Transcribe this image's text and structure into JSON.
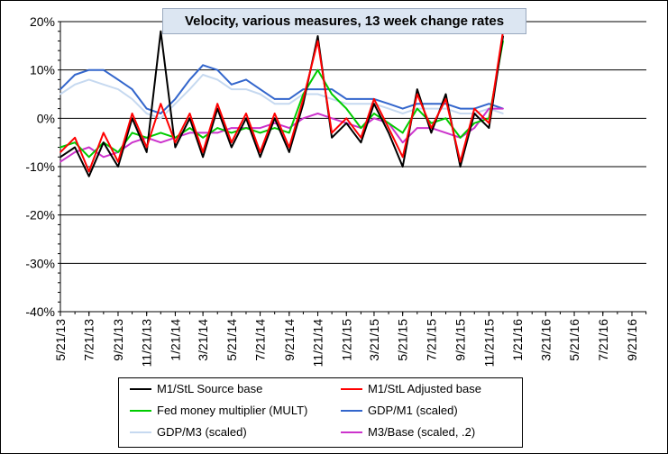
{
  "chart_data": {
    "type": "line",
    "title": "Velocity, various measures, 13 week change rates",
    "ylim": [
      -40,
      20
    ],
    "yticks": [
      "20%",
      "10%",
      "0%",
      "-10%",
      "-20%",
      "-30%",
      "-40%"
    ],
    "ytick_values": [
      20,
      10,
      0,
      -10,
      -20,
      -30,
      -40
    ],
    "xtick_labels": [
      "5/21/13",
      "7/21/13",
      "9/21/13",
      "11/21/13",
      "1/21/14",
      "3/21/14",
      "5/21/14",
      "7/21/14",
      "9/21/14",
      "11/21/14",
      "1/21/15",
      "3/21/15",
      "5/21/15",
      "7/21/15",
      "9/21/15",
      "11/21/15",
      "1/21/16",
      "3/21/16",
      "5/21/16",
      "7/21/16",
      "9/21/16"
    ],
    "grid": "horizontal",
    "legend_position": "bottom",
    "series": [
      {
        "name": "M1/StL Source base",
        "color": "#000000",
        "x": [
          "5/21/13",
          "6/21/13",
          "7/21/13",
          "8/21/13",
          "9/21/13",
          "10/21/13",
          "11/21/13",
          "12/21/13",
          "1/21/14",
          "2/21/14",
          "3/21/14",
          "4/21/14",
          "5/21/14",
          "6/21/14",
          "7/21/14",
          "8/21/14",
          "9/21/14",
          "10/21/14",
          "11/21/14",
          "12/21/14",
          "1/21/15",
          "2/21/15",
          "3/21/15",
          "4/21/15",
          "5/21/15",
          "6/21/15",
          "7/21/15",
          "8/21/15",
          "9/21/15",
          "10/21/15",
          "11/21/15",
          "12/21/15"
        ],
        "values": [
          -8,
          -6,
          -12,
          -5,
          -10,
          0,
          -7,
          18,
          -6,
          0,
          -8,
          2,
          -6,
          0,
          -8,
          0,
          -7,
          3,
          17,
          -4,
          -1,
          -5,
          3,
          -3,
          -10,
          6,
          -3,
          5,
          -10,
          1,
          -2,
          17
        ]
      },
      {
        "name": "M1/StL Adjusted base",
        "color": "#ff0000",
        "x": [
          "5/21/13",
          "6/21/13",
          "7/21/13",
          "8/21/13",
          "9/21/13",
          "10/21/13",
          "11/21/13",
          "12/21/13",
          "1/21/14",
          "2/21/14",
          "3/21/14",
          "4/21/14",
          "5/21/14",
          "6/21/14",
          "7/21/14",
          "8/21/14",
          "9/21/14",
          "10/21/14",
          "11/21/14",
          "12/21/14",
          "1/21/15",
          "2/21/15",
          "3/21/15",
          "4/21/15",
          "5/21/15",
          "6/21/15",
          "7/21/15",
          "8/21/15",
          "9/21/15",
          "10/21/15",
          "11/21/15",
          "12/21/15"
        ],
        "values": [
          -7,
          -4,
          -11,
          -3,
          -9,
          1,
          -6,
          3,
          -5,
          1,
          -7,
          3,
          -5,
          1,
          -7,
          1,
          -6,
          4,
          16,
          -3,
          0,
          -4,
          4,
          -2,
          -8,
          5,
          -2,
          4,
          -9,
          2,
          -1,
          18
        ]
      },
      {
        "name": "Fed money multiplier (MULT)",
        "color": "#00cc00",
        "x": [
          "5/21/13",
          "6/21/13",
          "7/21/13",
          "8/21/13",
          "9/21/13",
          "10/21/13",
          "11/21/13",
          "12/21/13",
          "1/21/14",
          "2/21/14",
          "3/21/14",
          "4/21/14",
          "5/21/14",
          "6/21/14",
          "7/21/14",
          "8/21/14",
          "9/21/14",
          "10/21/14",
          "11/21/14",
          "12/21/14",
          "1/21/15",
          "2/21/15",
          "3/21/15",
          "4/21/15",
          "5/21/15",
          "6/21/15",
          "7/21/15",
          "8/21/15",
          "9/21/15",
          "10/21/15",
          "11/21/15",
          "12/21/15"
        ],
        "values": [
          -6,
          -5,
          -8,
          -5,
          -7,
          -3,
          -4,
          -3,
          -4,
          -2,
          -4,
          -2,
          -3,
          -2,
          -3,
          -2,
          -3,
          5,
          10,
          5,
          2,
          -2,
          1,
          -1,
          -3,
          2,
          -1,
          0,
          -4,
          -1,
          0,
          16
        ]
      },
      {
        "name": "GDP/M1 (scaled)",
        "color": "#3366cc",
        "x": [
          "5/21/13",
          "6/21/13",
          "7/21/13",
          "8/21/13",
          "9/21/13",
          "10/21/13",
          "11/21/13",
          "12/21/13",
          "1/21/14",
          "2/21/14",
          "3/21/14",
          "4/21/14",
          "5/21/14",
          "6/21/14",
          "7/21/14",
          "8/21/14",
          "9/21/14",
          "10/21/14",
          "11/21/14",
          "12/21/14",
          "1/21/15",
          "2/21/15",
          "3/21/15",
          "4/21/15",
          "5/21/15",
          "6/21/15",
          "7/21/15",
          "8/21/15",
          "9/21/15",
          "10/21/15",
          "11/21/15",
          "12/21/15"
        ],
        "values": [
          6,
          9,
          10,
          10,
          8,
          6,
          2,
          1,
          4,
          8,
          11,
          10,
          7,
          8,
          6,
          4,
          4,
          6,
          6,
          6,
          4,
          4,
          4,
          3,
          2,
          3,
          3,
          3,
          2,
          2,
          3,
          2
        ]
      },
      {
        "name": "GDP/M3 (scaled)",
        "color": "#c6d9f0",
        "x": [
          "5/21/13",
          "6/21/13",
          "7/21/13",
          "8/21/13",
          "9/21/13",
          "10/21/13",
          "11/21/13",
          "12/21/13",
          "1/21/14",
          "2/21/14",
          "3/21/14",
          "4/21/14",
          "5/21/14",
          "6/21/14",
          "7/21/14",
          "8/21/14",
          "9/21/14",
          "10/21/14",
          "11/21/14",
          "12/21/14",
          "1/21/15",
          "2/21/15",
          "3/21/15",
          "4/21/15",
          "5/21/15",
          "6/21/15",
          "7/21/15",
          "8/21/15",
          "9/21/15",
          "10/21/15",
          "11/21/15",
          "12/21/15"
        ],
        "values": [
          5,
          7,
          8,
          7,
          6,
          4,
          1,
          0,
          3,
          6,
          9,
          8,
          6,
          6,
          5,
          3,
          3,
          5,
          5,
          4,
          3,
          3,
          3,
          2,
          1,
          2,
          2,
          2,
          1,
          1,
          2,
          1
        ]
      },
      {
        "name": "M3/Base (scaled, .2)",
        "color": "#cc33cc",
        "x": [
          "5/21/13",
          "6/21/13",
          "7/21/13",
          "8/21/13",
          "9/21/13",
          "10/21/13",
          "11/21/13",
          "12/21/13",
          "1/21/14",
          "2/21/14",
          "3/21/14",
          "4/21/14",
          "5/21/14",
          "6/21/14",
          "7/21/14",
          "8/21/14",
          "9/21/14",
          "10/21/14",
          "11/21/14",
          "12/21/14",
          "1/21/15",
          "2/21/15",
          "3/21/15",
          "4/21/15",
          "5/21/15",
          "6/21/15",
          "7/21/15",
          "8/21/15",
          "9/21/15",
          "10/21/15",
          "11/21/15",
          "12/21/15"
        ],
        "values": [
          -9,
          -7,
          -6,
          -8,
          -7,
          -5,
          -4,
          -5,
          -4,
          -3,
          -3,
          -3,
          -2,
          -2,
          -2,
          -1,
          -2,
          0,
          1,
          0,
          -1,
          -2,
          0,
          -1,
          -5,
          -2,
          -2,
          -3,
          -4,
          -2,
          2,
          2
        ]
      }
    ]
  }
}
